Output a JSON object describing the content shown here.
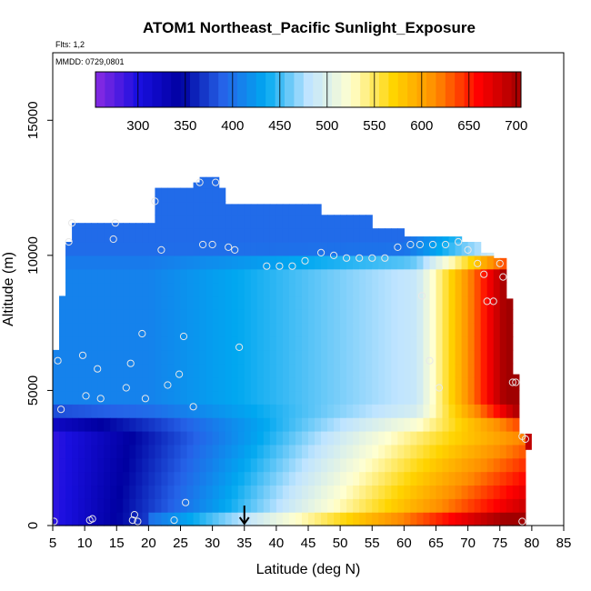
{
  "chart_data": {
    "type": "heatmap",
    "title": "ATOM1 Northeast_Pacific Sunlight_Exposure",
    "subtitle_flights": "Flts: 1,2",
    "subtitle_dates": "MMDD: 0729,0801",
    "xlabel": "Latitude (deg N)",
    "ylabel": "Altitude (m)",
    "xlim": [
      5,
      85
    ],
    "ylim": [
      0,
      17500
    ],
    "x_ticks": [
      "5",
      "10",
      "15",
      "20",
      "25",
      "30",
      "35",
      "40",
      "45",
      "50",
      "55",
      "60",
      "65",
      "70",
      "75",
      "80",
      "85"
    ],
    "y_ticks": [
      "0",
      "5000",
      "10000",
      "15000"
    ],
    "colorbar": {
      "ticks": [
        "300",
        "350",
        "400",
        "450",
        "500",
        "550",
        "600",
        "650",
        "700"
      ],
      "range": [
        255,
        705
      ],
      "colors": [
        "#8a2be2",
        "#1a0fe0",
        "#0000a0",
        "#2563e8",
        "#00a8f0",
        "#bfe4ff",
        "#ffffd0",
        "#ffd400",
        "#ff8c00",
        "#ff0000",
        "#a00000"
      ]
    },
    "arrow_latitude": 35,
    "obs_points": [
      [
        5.2,
        150
      ],
      [
        5.8,
        6100
      ],
      [
        6.3,
        4300
      ],
      [
        7.5,
        10500
      ],
      [
        8.0,
        11200
      ],
      [
        9.7,
        6300
      ],
      [
        10.2,
        4800
      ],
      [
        10.8,
        200
      ],
      [
        11.2,
        250
      ],
      [
        12.0,
        5800
      ],
      [
        12.5,
        4700
      ],
      [
        14.5,
        10600
      ],
      [
        14.8,
        11200
      ],
      [
        16.5,
        5100
      ],
      [
        17.2,
        6000
      ],
      [
        17.5,
        200
      ],
      [
        17.8,
        400
      ],
      [
        18.3,
        150
      ],
      [
        19.0,
        7100
      ],
      [
        19.5,
        4700
      ],
      [
        21.0,
        12000
      ],
      [
        22.0,
        10200
      ],
      [
        23.0,
        5200
      ],
      [
        24.0,
        200
      ],
      [
        24.8,
        5600
      ],
      [
        25.5,
        7000
      ],
      [
        25.8,
        850
      ],
      [
        27.0,
        4400
      ],
      [
        28.0,
        12700
      ],
      [
        28.5,
        10400
      ],
      [
        30.0,
        10400
      ],
      [
        30.5,
        12700
      ],
      [
        32.5,
        10300
      ],
      [
        33.5,
        10200
      ],
      [
        34.2,
        6600
      ],
      [
        38.5,
        9600
      ],
      [
        40.5,
        9600
      ],
      [
        42.5,
        9600
      ],
      [
        44.5,
        9800
      ],
      [
        47.0,
        10100
      ],
      [
        49.0,
        10000
      ],
      [
        51.0,
        9900
      ],
      [
        53.0,
        9900
      ],
      [
        55.0,
        9900
      ],
      [
        57.0,
        9900
      ],
      [
        59.0,
        10300
      ],
      [
        61.0,
        10400
      ],
      [
        62.5,
        10400
      ],
      [
        62.8,
        8500
      ],
      [
        64.0,
        6100
      ],
      [
        64.5,
        10400
      ],
      [
        65.5,
        5100
      ],
      [
        66.5,
        10400
      ],
      [
        68.5,
        10500
      ],
      [
        70.0,
        10200
      ],
      [
        71.5,
        9700
      ],
      [
        72.5,
        9300
      ],
      [
        73.0,
        8300
      ],
      [
        74.0,
        8300
      ],
      [
        75.0,
        9700
      ],
      [
        75.5,
        9200
      ],
      [
        77.0,
        5300
      ],
      [
        77.5,
        5300
      ],
      [
        78.5,
        3300
      ],
      [
        79.0,
        3200
      ],
      [
        78.5,
        150
      ]
    ]
  }
}
